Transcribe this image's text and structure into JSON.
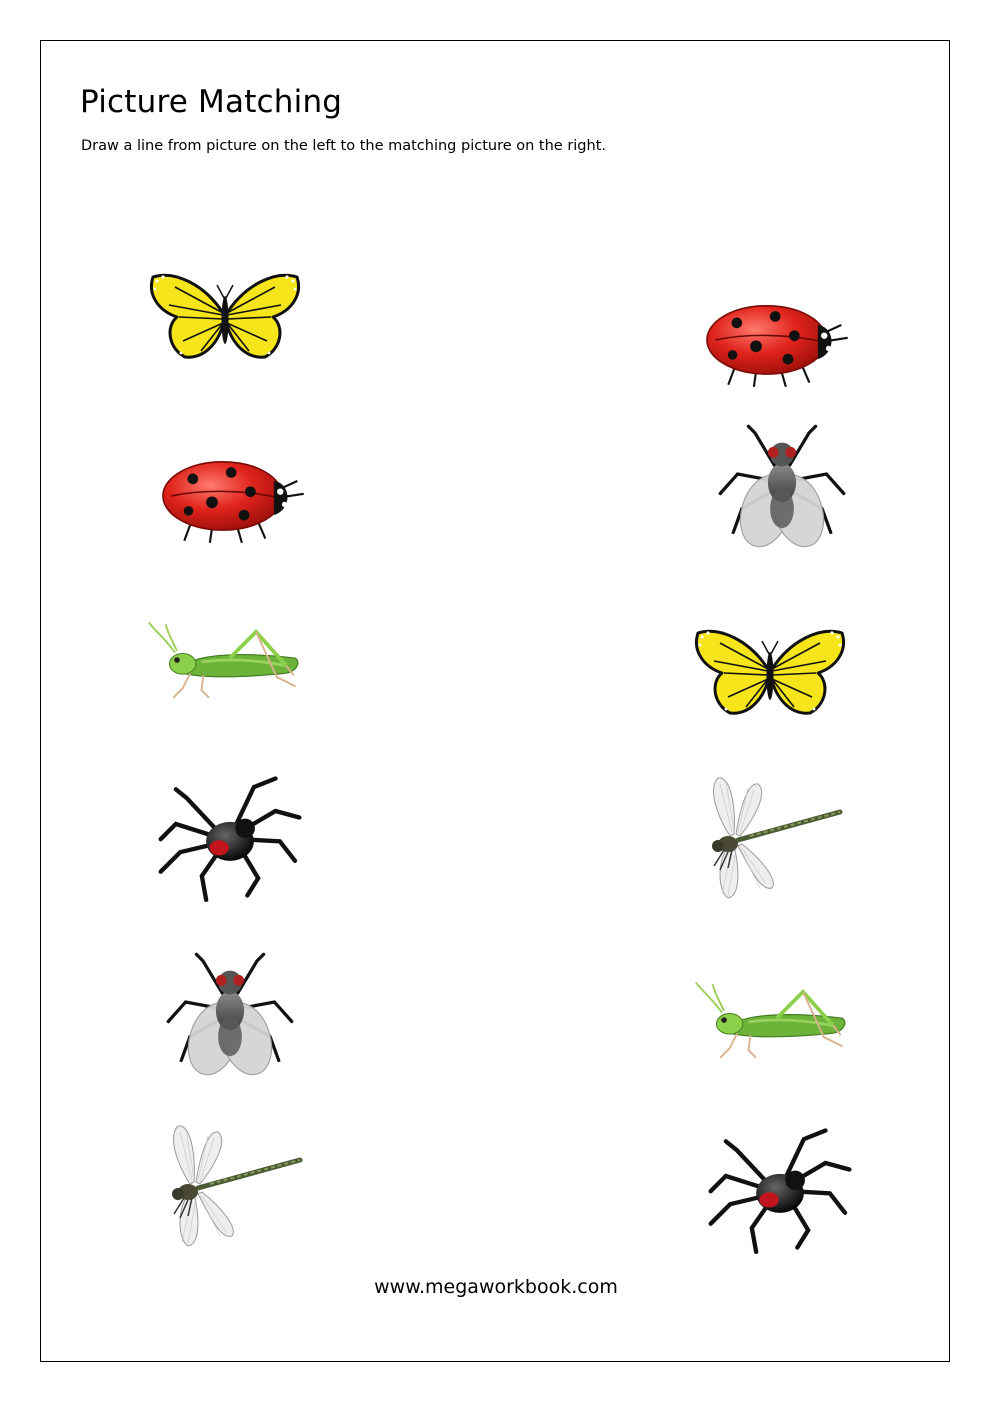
{
  "worksheet": {
    "title": "Picture Matching",
    "instructions": "Draw a line from picture on the left to the matching picture on the right.",
    "footer": "www.megaworkbook.com"
  },
  "left_column": [
    {
      "icon": "butterfly-icon"
    },
    {
      "icon": "ladybug-icon"
    },
    {
      "icon": "grasshopper-icon"
    },
    {
      "icon": "spider-icon"
    },
    {
      "icon": "fly-icon"
    },
    {
      "icon": "dragonfly-icon"
    }
  ],
  "right_column": [
    {
      "icon": "ladybug-icon"
    },
    {
      "icon": "fly-icon"
    },
    {
      "icon": "butterfly-icon"
    },
    {
      "icon": "dragonfly-icon"
    },
    {
      "icon": "grasshopper-icon"
    },
    {
      "icon": "spider-icon"
    }
  ],
  "colors": {
    "butterfly_wing": "#f6e51a",
    "ladybug_shell": "#e0241c",
    "grasshopper_body": "#7cc63a",
    "spider_mark": "#c2141c",
    "fly_wing": "#d4d4d4"
  }
}
